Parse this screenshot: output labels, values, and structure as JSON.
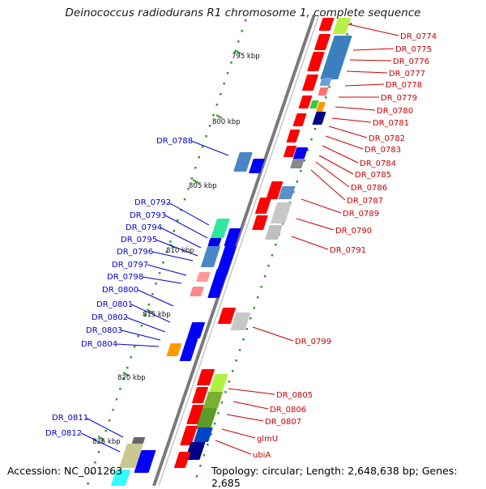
{
  "title": "Deinococcus radiodurans R1 chromosome 1, complete sequence",
  "footer": {
    "accession": "Accession: NC_001263",
    "topology": "Topology: circular; Length: 2,648,638 bp; Genes: 2,685"
  },
  "kbp_labels": [
    "795 kbp",
    "800 kbp",
    "805 kbp",
    "810 kbp",
    "815 kbp",
    "820 kbp",
    "825 kbp"
  ],
  "left_labels": [
    "DR_0788",
    "DR_0792",
    "DR_0793",
    "DR_0794",
    "DR_0795",
    "DR_0796",
    "DR_0797",
    "DR_0798",
    "DR_0800",
    "DR_0801",
    "DR_0802",
    "DR_0803",
    "DR_0804",
    "DR_0811",
    "DR_0812"
  ],
  "right_labels": [
    "DR_0774",
    "DR_0775",
    "DR_0776",
    "DR_0777",
    "DR_0778",
    "DR_0779",
    "DR_0780",
    "DR_0781",
    "DR_0782",
    "DR_0783",
    "DR_0784",
    "DR_0785",
    "DR_0786",
    "DR_0787",
    "DR_0789",
    "DR_0790",
    "DR_0791",
    "DR_0799",
    "DR_0805",
    "DR_0806",
    "DR_0807",
    "glmU",
    "ubiA"
  ],
  "colors": {
    "backbone": "#7a7a7a",
    "left_label": "#0000cc",
    "right_label": "#cc0000",
    "tick": "#2e9a2e",
    "forward_gene": "#0000ff",
    "reverse_gene": "#ff0000"
  }
}
